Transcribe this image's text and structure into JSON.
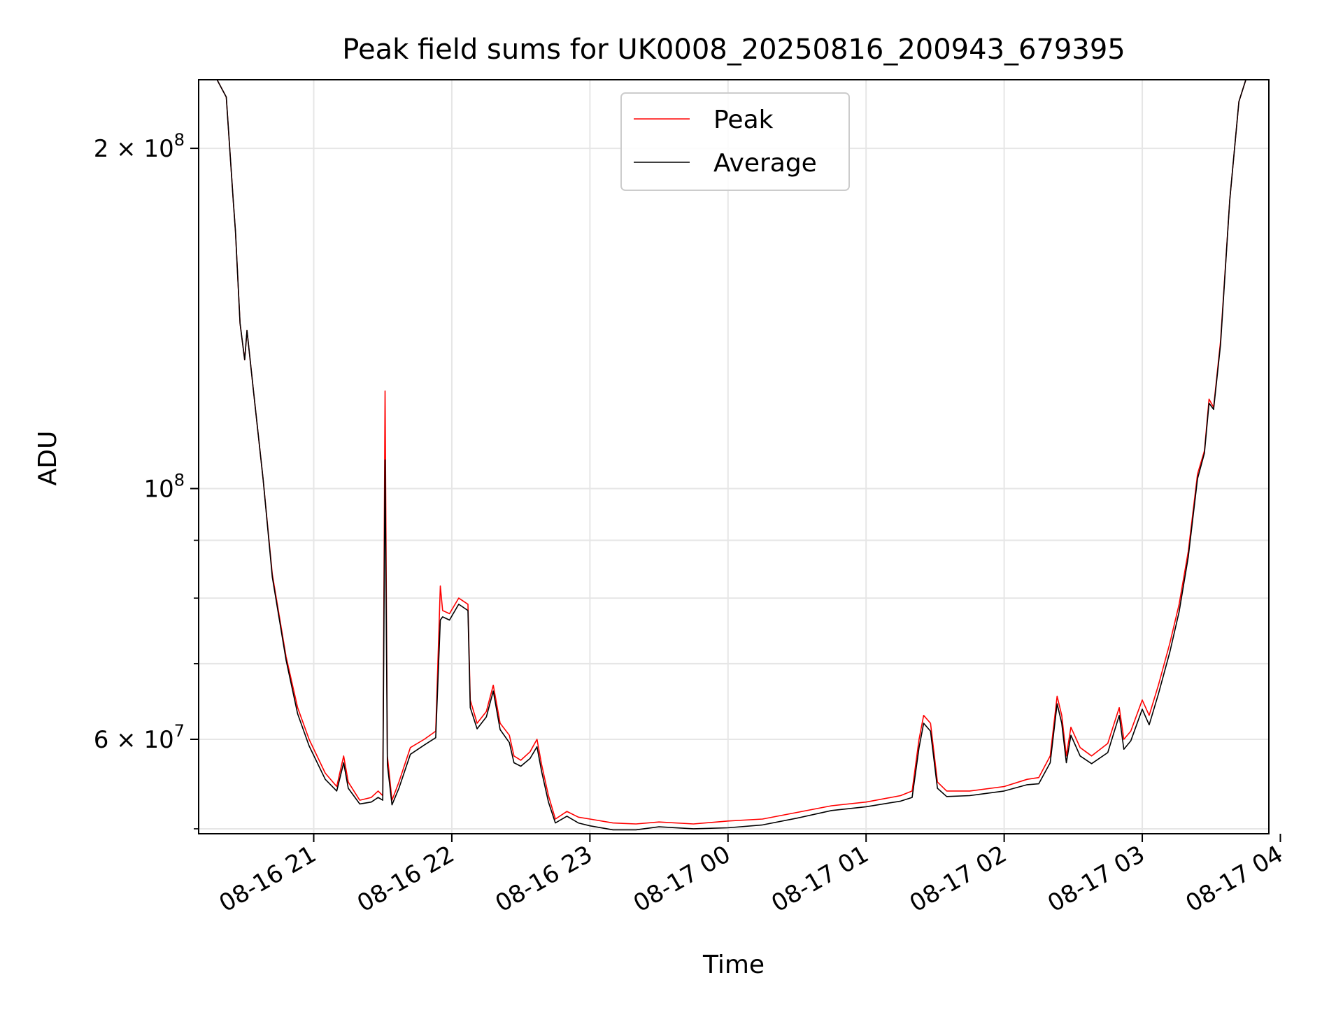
{
  "chart_data": {
    "type": "line",
    "title": "Peak field sums for UK0008_20250816_200943_679395",
    "xlabel": "Time",
    "ylabel": "ADU",
    "y_scale": "log",
    "x_range": [
      "08-16 20:10",
      "08-17 03:55"
    ],
    "ylim": [
      49500000,
      230000000
    ],
    "grid": true,
    "legend_position": "top-center",
    "x_ticks": [
      "08-16 21",
      "08-16 22",
      "08-16 23",
      "08-17 00",
      "08-17 01",
      "08-17 02",
      "08-17 03",
      "08-17 04"
    ],
    "y_ticks": [
      {
        "value": 60000000,
        "base": "6 × 10",
        "exp": "7"
      },
      {
        "value": 100000000,
        "base": "10",
        "exp": "8"
      },
      {
        "value": 200000000,
        "base": "2 × 10",
        "exp": "8"
      }
    ],
    "series": [
      {
        "name": "Peak",
        "color": "#ff0000",
        "points": [
          [
            "08-16 20:10",
            230000000
          ],
          [
            "08-16 20:18",
            230000000
          ],
          [
            "08-16 20:22",
            222000000
          ],
          [
            "08-16 20:25",
            180000000
          ],
          [
            "08-16 20:26",
            169000000
          ],
          [
            "08-16 20:28",
            140000000
          ],
          [
            "08-16 20:30",
            130000000
          ],
          [
            "08-16 20:31",
            138000000
          ],
          [
            "08-16 20:34",
            121000000
          ],
          [
            "08-16 20:38",
            102000000
          ],
          [
            "08-16 20:42",
            84000000
          ],
          [
            "08-16 20:48",
            71000000
          ],
          [
            "08-16 20:53",
            64000000
          ],
          [
            "08-16 20:58",
            60000000
          ],
          [
            "08-16 21:05",
            56000000
          ],
          [
            "08-16 21:10",
            54500000
          ],
          [
            "08-16 21:13",
            58000000
          ],
          [
            "08-16 21:15",
            55000000
          ],
          [
            "08-16 21:20",
            53000000
          ],
          [
            "08-16 21:25",
            53300000
          ],
          [
            "08-16 21:28",
            54000000
          ],
          [
            "08-16 21:30",
            53500000
          ],
          [
            "08-16 21:31",
            122000000
          ],
          [
            "08-16 21:32",
            58000000
          ],
          [
            "08-16 21:34",
            53000000
          ],
          [
            "08-16 21:37",
            55000000
          ],
          [
            "08-16 21:42",
            59000000
          ],
          [
            "08-16 21:48",
            60000000
          ],
          [
            "08-16 21:53",
            61000000
          ],
          [
            "08-16 21:55",
            82000000
          ],
          [
            "08-16 21:56",
            78000000
          ],
          [
            "08-16 21:59",
            77500000
          ],
          [
            "08-16 22:03",
            80000000
          ],
          [
            "08-16 22:07",
            79000000
          ],
          [
            "08-16 22:08",
            65000000
          ],
          [
            "08-16 22:11",
            62000000
          ],
          [
            "08-16 22:15",
            63500000
          ],
          [
            "08-16 22:18",
            67000000
          ],
          [
            "08-16 22:21",
            62000000
          ],
          [
            "08-16 22:25",
            60500000
          ],
          [
            "08-16 22:27",
            58000000
          ],
          [
            "08-16 22:30",
            57500000
          ],
          [
            "08-16 22:34",
            58500000
          ],
          [
            "08-16 22:37",
            60000000
          ],
          [
            "08-16 22:39",
            57000000
          ],
          [
            "08-16 22:42",
            53500000
          ],
          [
            "08-16 22:45",
            51000000
          ],
          [
            "08-16 22:50",
            51800000
          ],
          [
            "08-16 22:55",
            51200000
          ],
          [
            "08-16 23:00",
            51000000
          ],
          [
            "08-16 23:10",
            50600000
          ],
          [
            "08-16 23:20",
            50500000
          ],
          [
            "08-16 23:30",
            50700000
          ],
          [
            "08-16 23:45",
            50500000
          ],
          [
            "08-17 00:00",
            50800000
          ],
          [
            "08-17 00:15",
            51000000
          ],
          [
            "08-17 00:30",
            51700000
          ],
          [
            "08-17 00:45",
            52400000
          ],
          [
            "08-17 01:00",
            52800000
          ],
          [
            "08-17 01:15",
            53500000
          ],
          [
            "08-17 01:20",
            54000000
          ],
          [
            "08-17 01:23",
            60000000
          ],
          [
            "08-17 01:25",
            63000000
          ],
          [
            "08-17 01:28",
            62000000
          ],
          [
            "08-17 01:31",
            55000000
          ],
          [
            "08-17 01:35",
            54000000
          ],
          [
            "08-17 01:45",
            54000000
          ],
          [
            "08-17 02:00",
            54500000
          ],
          [
            "08-17 02:10",
            55300000
          ],
          [
            "08-17 02:15",
            55500000
          ],
          [
            "08-17 02:20",
            58000000
          ],
          [
            "08-17 02:23",
            65500000
          ],
          [
            "08-17 02:25",
            63000000
          ],
          [
            "08-17 02:27",
            58000000
          ],
          [
            "08-17 02:29",
            61500000
          ],
          [
            "08-17 02:33",
            59000000
          ],
          [
            "08-17 02:38",
            58000000
          ],
          [
            "08-17 02:45",
            59500000
          ],
          [
            "08-17 02:50",
            64000000
          ],
          [
            "08-17 02:52",
            60000000
          ],
          [
            "08-17 02:55",
            61000000
          ],
          [
            "08-17 03:00",
            65000000
          ],
          [
            "08-17 03:03",
            63000000
          ],
          [
            "08-17 03:07",
            67000000
          ],
          [
            "08-17 03:12",
            73000000
          ],
          [
            "08-17 03:16",
            79000000
          ],
          [
            "08-17 03:20",
            88000000
          ],
          [
            "08-17 03:24",
            103000000
          ],
          [
            "08-17 03:27",
            108000000
          ],
          [
            "08-17 03:29",
            120000000
          ],
          [
            "08-17 03:31",
            118000000
          ],
          [
            "08-17 03:34",
            135000000
          ],
          [
            "08-17 03:38",
            180000000
          ],
          [
            "08-17 03:42",
            220000000
          ],
          [
            "08-17 03:45",
            230000000
          ],
          [
            "08-17 03:55",
            230000000
          ]
        ]
      },
      {
        "name": "Average",
        "color": "#000000",
        "points": [
          [
            "08-16 20:10",
            230000000
          ],
          [
            "08-16 20:18",
            230000000
          ],
          [
            "08-16 20:22",
            222000000
          ],
          [
            "08-16 20:25",
            180000000
          ],
          [
            "08-16 20:26",
            169000000
          ],
          [
            "08-16 20:28",
            140000000
          ],
          [
            "08-16 20:30",
            130000000
          ],
          [
            "08-16 20:31",
            138000000
          ],
          [
            "08-16 20:34",
            121000000
          ],
          [
            "08-16 20:38",
            102000000
          ],
          [
            "08-16 20:42",
            83500000
          ],
          [
            "08-16 20:48",
            70500000
          ],
          [
            "08-16 20:53",
            63200000
          ],
          [
            "08-16 20:58",
            59200000
          ],
          [
            "08-16 21:05",
            55300000
          ],
          [
            "08-16 21:10",
            54000000
          ],
          [
            "08-16 21:13",
            57200000
          ],
          [
            "08-16 21:15",
            54300000
          ],
          [
            "08-16 21:20",
            52600000
          ],
          [
            "08-16 21:25",
            52800000
          ],
          [
            "08-16 21:28",
            53300000
          ],
          [
            "08-16 21:30",
            53000000
          ],
          [
            "08-16 21:31",
            106000000
          ],
          [
            "08-16 21:32",
            57000000
          ],
          [
            "08-16 21:34",
            52500000
          ],
          [
            "08-16 21:37",
            54300000
          ],
          [
            "08-16 21:42",
            58200000
          ],
          [
            "08-16 21:48",
            59300000
          ],
          [
            "08-16 21:53",
            60200000
          ],
          [
            "08-16 21:55",
            76500000
          ],
          [
            "08-16 21:56",
            77000000
          ],
          [
            "08-16 21:59",
            76500000
          ],
          [
            "08-16 22:03",
            79000000
          ],
          [
            "08-16 22:07",
            78000000
          ],
          [
            "08-16 22:08",
            64000000
          ],
          [
            "08-16 22:11",
            61300000
          ],
          [
            "08-16 22:15",
            62800000
          ],
          [
            "08-16 22:18",
            66200000
          ],
          [
            "08-16 22:21",
            61200000
          ],
          [
            "08-16 22:25",
            59600000
          ],
          [
            "08-16 22:27",
            57200000
          ],
          [
            "08-16 22:30",
            56800000
          ],
          [
            "08-16 22:34",
            57700000
          ],
          [
            "08-16 22:37",
            59100000
          ],
          [
            "08-16 22:39",
            56200000
          ],
          [
            "08-16 22:42",
            52800000
          ],
          [
            "08-16 22:45",
            50600000
          ],
          [
            "08-16 22:50",
            51300000
          ],
          [
            "08-16 22:55",
            50600000
          ],
          [
            "08-16 23:00",
            50300000
          ],
          [
            "08-16 23:10",
            49900000
          ],
          [
            "08-16 23:20",
            49900000
          ],
          [
            "08-16 23:30",
            50200000
          ],
          [
            "08-16 23:45",
            50000000
          ],
          [
            "08-17 00:00",
            50100000
          ],
          [
            "08-17 00:15",
            50400000
          ],
          [
            "08-17 00:30",
            51100000
          ],
          [
            "08-17 00:45",
            51900000
          ],
          [
            "08-17 01:00",
            52300000
          ],
          [
            "08-17 01:15",
            52900000
          ],
          [
            "08-17 01:20",
            53300000
          ],
          [
            "08-17 01:23",
            59000000
          ],
          [
            "08-17 01:25",
            62000000
          ],
          [
            "08-17 01:28",
            61000000
          ],
          [
            "08-17 01:31",
            54300000
          ],
          [
            "08-17 01:35",
            53400000
          ],
          [
            "08-17 01:45",
            53500000
          ],
          [
            "08-17 02:00",
            54000000
          ],
          [
            "08-17 02:10",
            54700000
          ],
          [
            "08-17 02:15",
            54800000
          ],
          [
            "08-17 02:20",
            57200000
          ],
          [
            "08-17 02:23",
            64500000
          ],
          [
            "08-17 02:25",
            62000000
          ],
          [
            "08-17 02:27",
            57200000
          ],
          [
            "08-17 02:29",
            60500000
          ],
          [
            "08-17 02:33",
            58000000
          ],
          [
            "08-17 02:38",
            57100000
          ],
          [
            "08-17 02:45",
            58400000
          ],
          [
            "08-17 02:50",
            63000000
          ],
          [
            "08-17 02:52",
            58800000
          ],
          [
            "08-17 02:55",
            59800000
          ],
          [
            "08-17 03:00",
            63800000
          ],
          [
            "08-17 03:03",
            61800000
          ],
          [
            "08-17 03:07",
            65800000
          ],
          [
            "08-17 03:12",
            71700000
          ],
          [
            "08-17 03:16",
            77800000
          ],
          [
            "08-17 03:20",
            87000000
          ],
          [
            "08-17 03:24",
            102000000
          ],
          [
            "08-17 03:27",
            107500000
          ],
          [
            "08-17 03:29",
            119000000
          ],
          [
            "08-17 03:31",
            117500000
          ],
          [
            "08-17 03:34",
            134000000
          ],
          [
            "08-17 03:38",
            180000000
          ],
          [
            "08-17 03:42",
            220000000
          ],
          [
            "08-17 03:45",
            230000000
          ],
          [
            "08-17 03:55",
            230000000
          ]
        ]
      }
    ]
  }
}
